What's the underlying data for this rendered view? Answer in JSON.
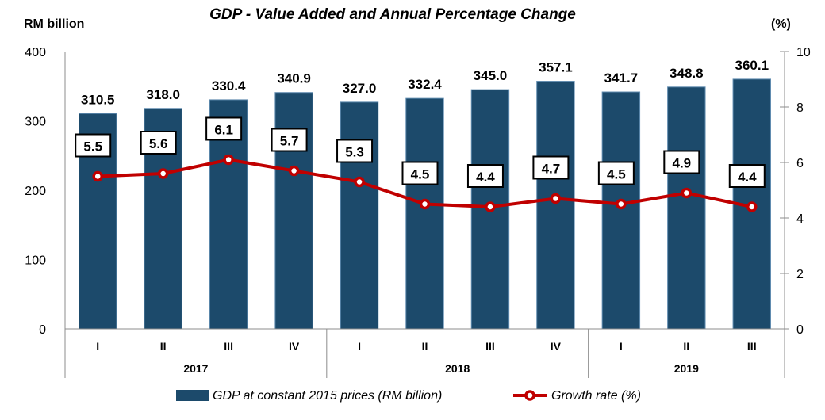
{
  "chart_data": {
    "type": "bar",
    "title": "GDP - Value Added and Annual Percentage Change",
    "ylabel_left": "RM billion",
    "ylabel_right": "(%)",
    "ylim_left": [
      0,
      400
    ],
    "yticks_left": [
      0,
      100,
      200,
      300,
      400
    ],
    "ylim_right": [
      0,
      10
    ],
    "yticks_right": [
      0,
      2,
      4,
      6,
      8,
      10
    ],
    "grid": false,
    "legend_position": "bottom",
    "categories": [
      "I",
      "II",
      "III",
      "IV",
      "I",
      "II",
      "III",
      "IV",
      "I",
      "II",
      "III"
    ],
    "groups": [
      {
        "label": "2017",
        "count": 4
      },
      {
        "label": "2018",
        "count": 4
      },
      {
        "label": "2019",
        "count": 3
      }
    ],
    "series": [
      {
        "name": "GDP at constant 2015 prices (RM billion)",
        "type": "bar",
        "axis": "left",
        "color": "#1C4A6B",
        "values": [
          310.5,
          318.0,
          330.4,
          340.9,
          327.0,
          332.4,
          345.0,
          357.1,
          341.7,
          348.8,
          360.1
        ],
        "labels": [
          "310.5",
          "318.0",
          "330.4",
          "340.9",
          "327.0",
          "332.4",
          "345.0",
          "357.1",
          "341.7",
          "348.8",
          "360.1"
        ]
      },
      {
        "name": "Growth rate (%)",
        "type": "line",
        "axis": "right",
        "color": "#C00000",
        "values": [
          5.5,
          5.6,
          6.1,
          5.7,
          5.3,
          4.5,
          4.4,
          4.7,
          4.5,
          4.9,
          4.4
        ],
        "labels": [
          "5.5",
          "5.6",
          "6.1",
          "5.7",
          "5.3",
          "4.5",
          "4.4",
          "4.7",
          "4.5",
          "4.9",
          "4.4"
        ]
      }
    ]
  }
}
